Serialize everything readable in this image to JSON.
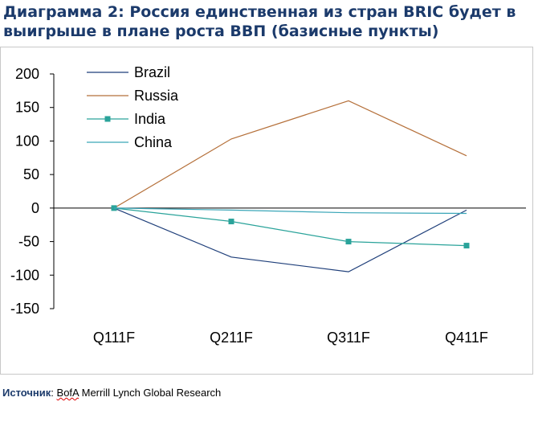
{
  "header": {
    "title": "Диаграмма 2: Россия единственная из стран BRIC будет в выигрыше в плане роста ВВП (базисные пункты)"
  },
  "footer": {
    "source_label": "Источник",
    "source_sep": ": ",
    "source_prefix": "BofA",
    "source_text": " Merrill Lynch Global Research"
  },
  "chart_data": {
    "type": "line",
    "categories": [
      "Q111F",
      "Q211F",
      "Q311F",
      "Q411F"
    ],
    "ylim": [
      -150,
      200
    ],
    "yticks": [
      200,
      150,
      100,
      50,
      0,
      -50,
      -100,
      -150
    ],
    "title": "",
    "xlabel": "",
    "ylabel": "",
    "grid": false,
    "legend_position": "top-left",
    "series": [
      {
        "name": "Brazil",
        "color": "#1f3f7a",
        "marker": "none",
        "values": [
          0,
          -73,
          -95,
          -3
        ]
      },
      {
        "name": "Russia",
        "color": "#b5703a",
        "marker": "none",
        "values": [
          0,
          103,
          160,
          78
        ]
      },
      {
        "name": "India",
        "color": "#2aa39a",
        "marker": "square",
        "values": [
          0,
          -20,
          -50,
          -56
        ]
      },
      {
        "name": "China",
        "color": "#3aa6b8",
        "marker": "none",
        "values": [
          0,
          -3,
          -7,
          -8
        ]
      }
    ]
  }
}
